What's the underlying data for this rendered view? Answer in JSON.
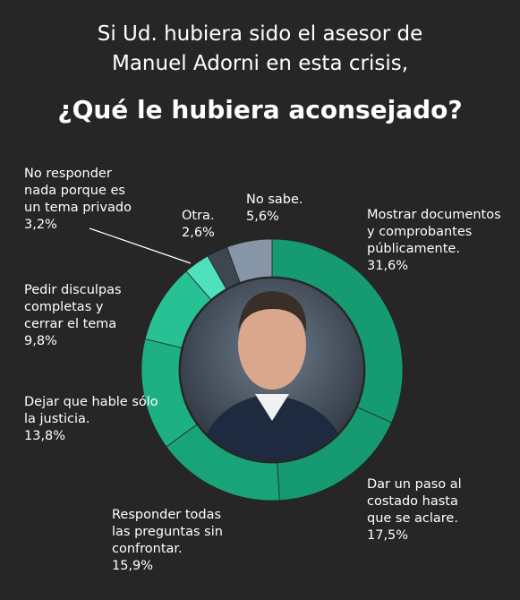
{
  "chart_data": {
    "type": "donut",
    "title_lines": [
      "Si Ud. hubiera sido el asesor de",
      "Manuel Adorni en esta crisis,"
    ],
    "question": "¿Qué le hubiera aconsejado?",
    "categories": [
      "Mostrar documentos y comprobantes públicamente.",
      "Dar un paso al costado hasta que se aclare.",
      "Responder todas las preguntas sin confrontar.",
      "Dejar que hable sólo la justicia.",
      "Pedir disculpas completas y cerrar el tema",
      "No responder nada porque es un tema privado",
      "Otra.",
      "No sabe."
    ],
    "values": [
      31.6,
      17.5,
      15.9,
      13.8,
      9.8,
      3.2,
      2.6,
      5.6
    ],
    "value_labels": [
      "31,6%",
      "17,5%",
      "15,9%",
      "13,8%",
      "9,8%",
      "3,2%",
      "2,6%",
      "5,6%"
    ],
    "colors": [
      "#169a72",
      "#169a72",
      "#18a478",
      "#1cb083",
      "#27c194",
      "#4fe1bd",
      "#3c4751",
      "#8796a6"
    ]
  }
}
